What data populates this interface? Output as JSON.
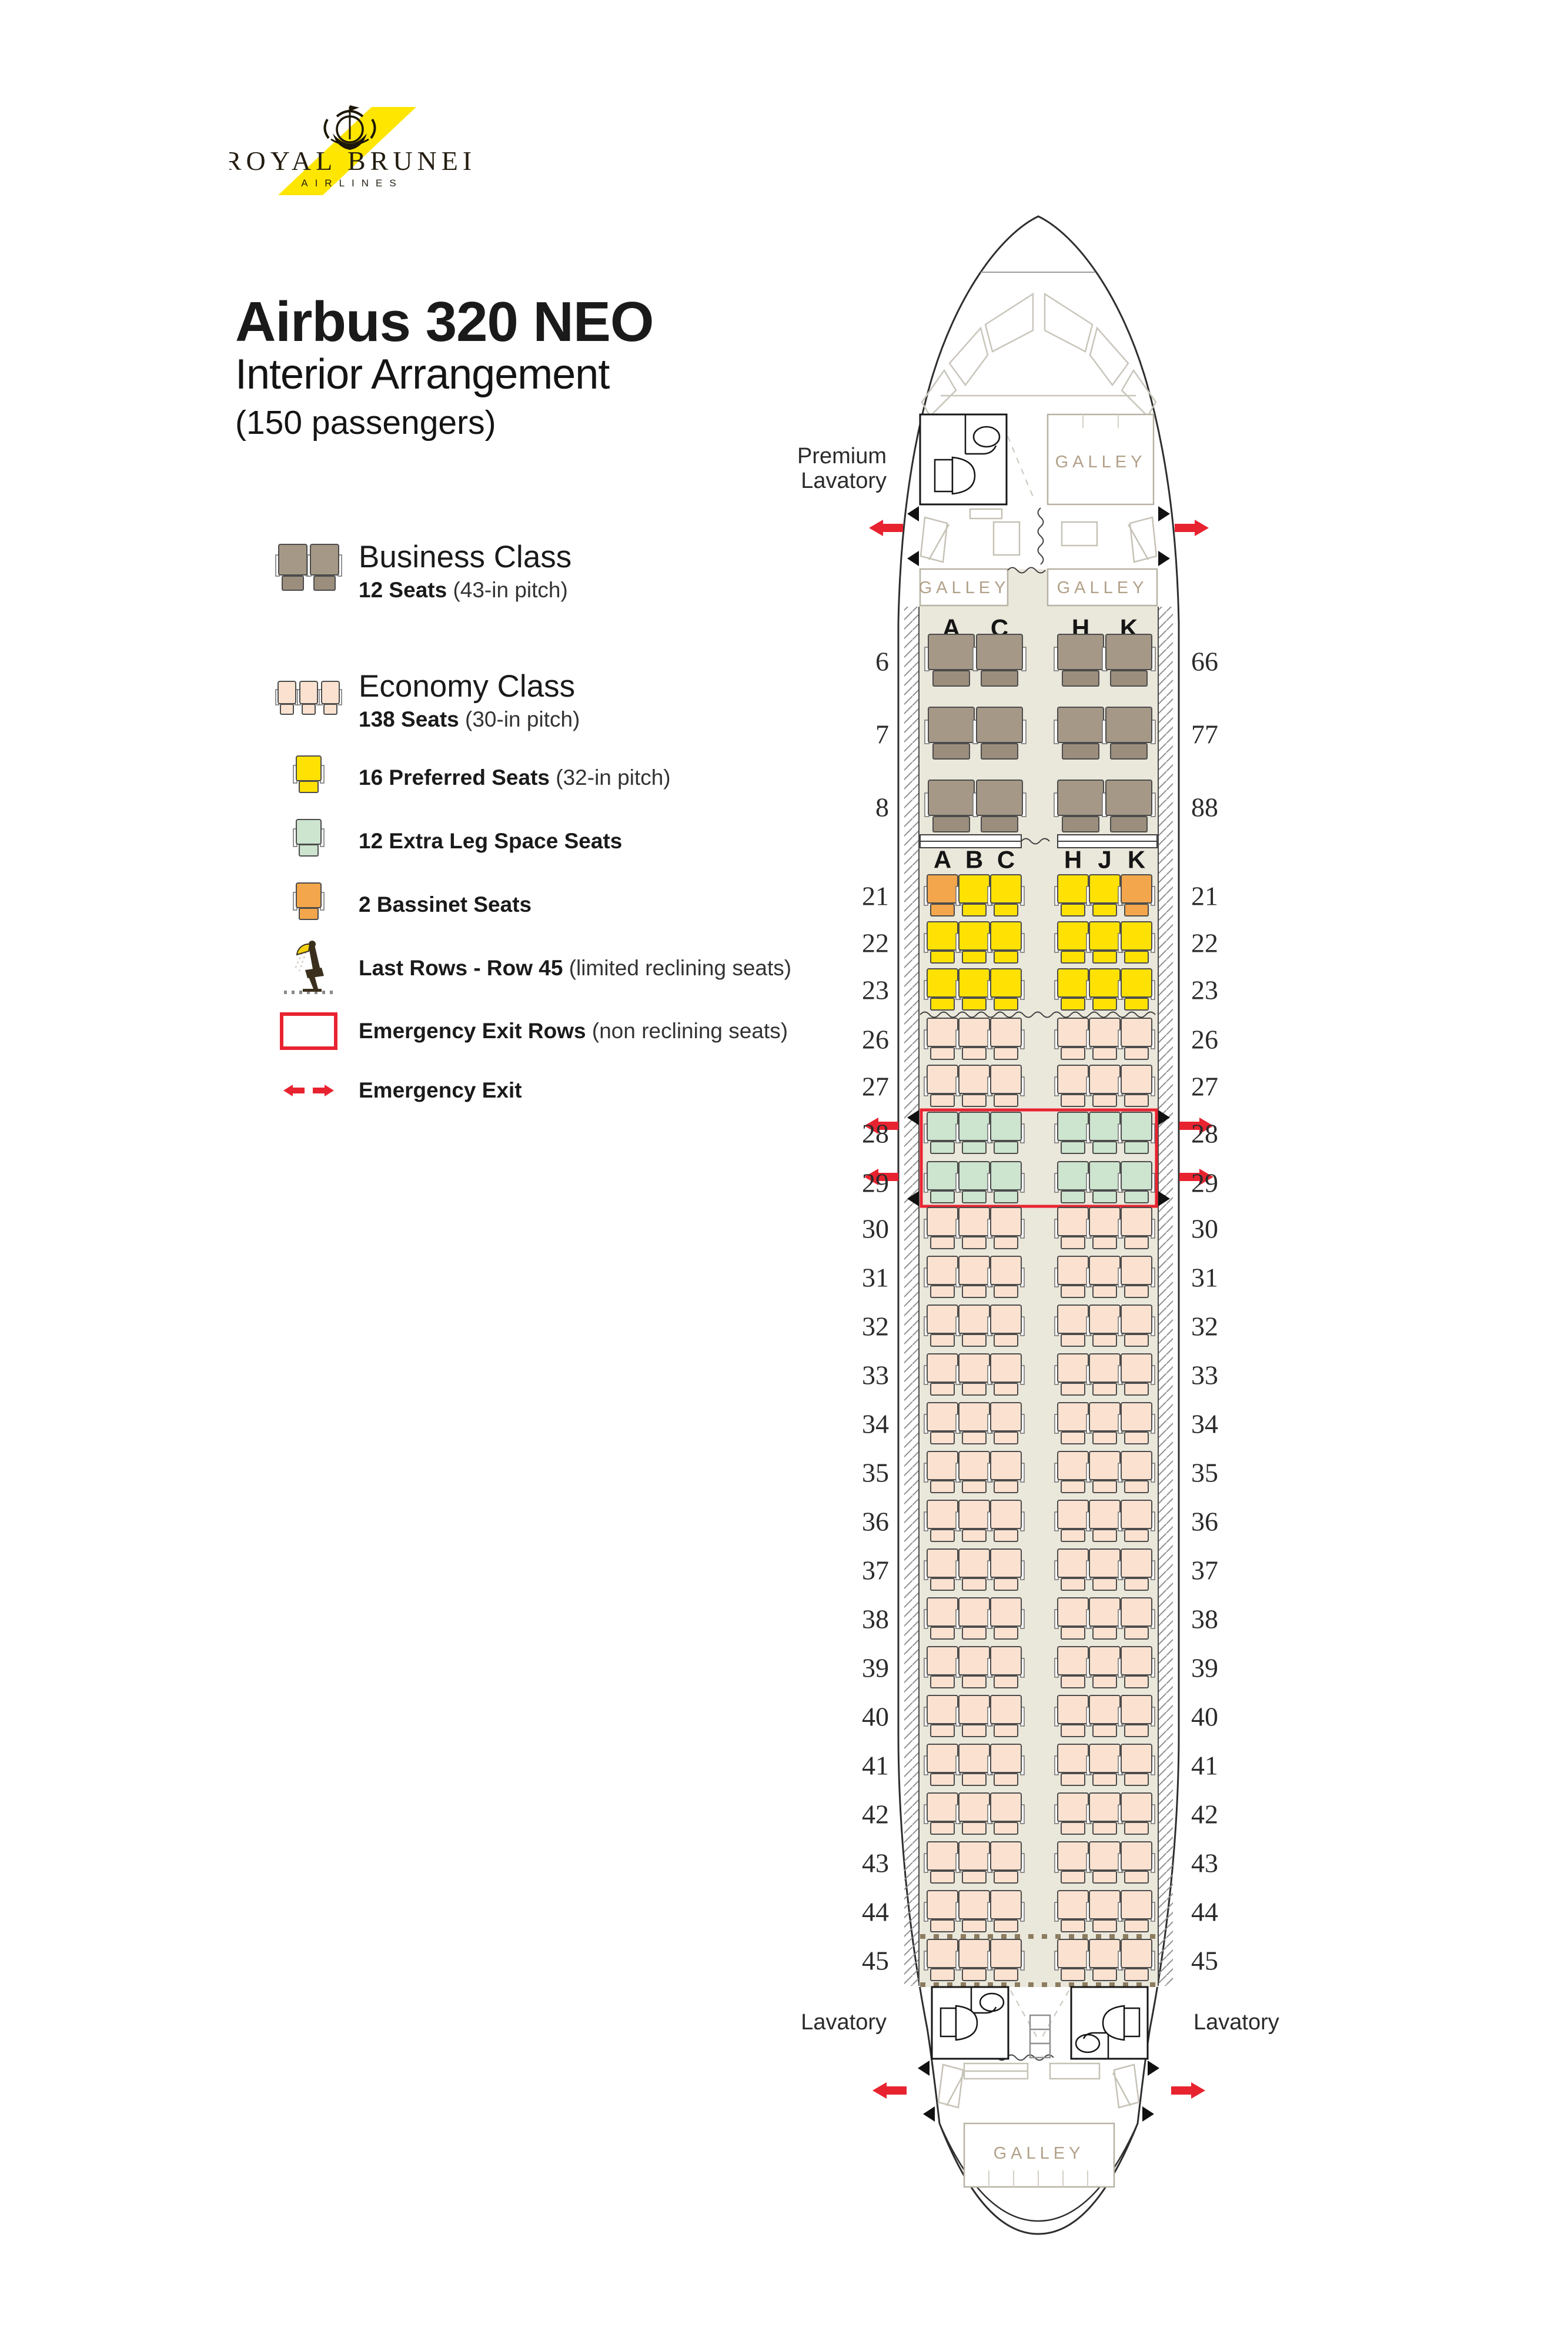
{
  "logo": {
    "name": "ROYAL BRUNEI",
    "sub": "AIRLINES"
  },
  "title": {
    "line1": "Airbus 320 NEO",
    "line2": "Interior Arrangement",
    "line3": "(150 passengers)"
  },
  "legend": {
    "items": [
      {
        "id": "business",
        "title": "Business Class",
        "seats": "12 Seats",
        "pitch": "(43-in pitch)"
      },
      {
        "id": "economy",
        "title": "Economy Class",
        "seats": "138 Seats",
        "pitch": "(30-in pitch)"
      },
      {
        "id": "preferred",
        "label": "16 Preferred Seats",
        "pitch": "(32-in pitch)"
      },
      {
        "id": "extra",
        "label": "12 Extra Leg Space Seats",
        "pitch": ""
      },
      {
        "id": "bassinet",
        "label": "2 Bassinet Seats",
        "pitch": ""
      },
      {
        "id": "lastrows",
        "label": "Last Rows - Row 45",
        "pitch": "(limited reclining seats)"
      },
      {
        "id": "exitrows",
        "label": "Emergency Exit Rows",
        "pitch": "(non reclining seats)"
      },
      {
        "id": "exit",
        "label": "Emergency Exit",
        "pitch": ""
      }
    ]
  },
  "aircraft": {
    "labels": {
      "premium_lavatory_line1": "Premium",
      "premium_lavatory_line2": "Lavatory",
      "galley": "GALLEY",
      "lavatory_left": "Lavatory",
      "lavatory_right": "Lavatory"
    },
    "business_columns": {
      "left": [
        "A",
        "C"
      ],
      "right": [
        "H",
        "K"
      ]
    },
    "economy_columns": {
      "left": [
        "A",
        "B",
        "C"
      ],
      "right": [
        "H",
        "J",
        "K"
      ]
    },
    "business_rows": [
      {
        "left_label": "6",
        "right_label": "66"
      },
      {
        "left_label": "7",
        "right_label": "77"
      },
      {
        "left_label": "8",
        "right_label": "88"
      }
    ],
    "economy_rows": [
      {
        "label": "21",
        "types": [
          "bassinet",
          "preferred",
          "preferred",
          "preferred",
          "preferred",
          "bassinet"
        ]
      },
      {
        "label": "22",
        "type": "preferred"
      },
      {
        "label": "23",
        "type": "preferred"
      },
      {
        "label": "26",
        "type": "standard"
      },
      {
        "label": "27",
        "type": "standard"
      },
      {
        "label": "28",
        "type": "extra",
        "emergency_exit_row": true
      },
      {
        "label": "29",
        "type": "extra",
        "emergency_exit_row": true
      },
      {
        "label": "30",
        "type": "standard"
      },
      {
        "label": "31",
        "type": "standard"
      },
      {
        "label": "32",
        "type": "standard"
      },
      {
        "label": "33",
        "type": "standard"
      },
      {
        "label": "34",
        "type": "standard"
      },
      {
        "label": "35",
        "type": "standard"
      },
      {
        "label": "36",
        "type": "standard"
      },
      {
        "label": "37",
        "type": "standard"
      },
      {
        "label": "38",
        "type": "standard"
      },
      {
        "label": "39",
        "type": "standard"
      },
      {
        "label": "40",
        "type": "standard"
      },
      {
        "label": "41",
        "type": "standard"
      },
      {
        "label": "42",
        "type": "standard"
      },
      {
        "label": "43",
        "type": "standard"
      },
      {
        "label": "44",
        "type": "standard"
      },
      {
        "label": "45",
        "type": "standard",
        "last_row": true
      }
    ]
  },
  "colors": {
    "standard": "#fbe2d0",
    "preferred": "#ffe204",
    "bassinet": "#f3a64b",
    "extra": "#cde4cf",
    "business": "#a59887",
    "business_cushion": "#9c8e7d",
    "seat_stroke": "#4c4c4c",
    "red": "#e82330",
    "floor": "#eae7db",
    "galley_text": "#b2a189",
    "dashed": "#8c7c60"
  }
}
